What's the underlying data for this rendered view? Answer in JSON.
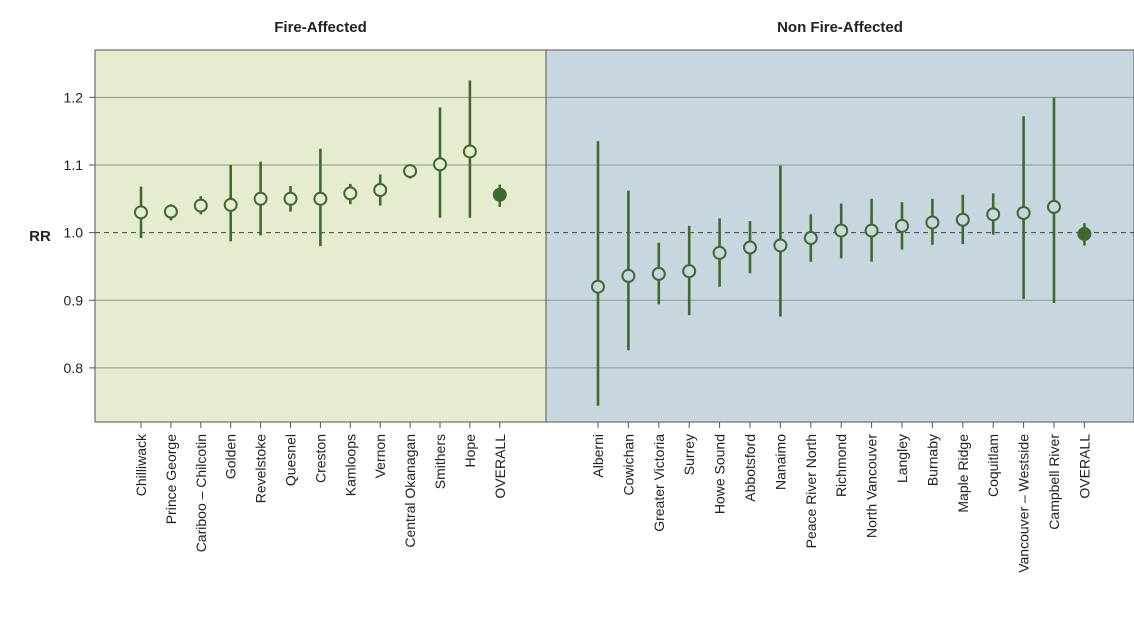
{
  "chart_data": {
    "type": "scatter",
    "ylabel": "RR",
    "ylim": [
      0.72,
      1.27
    ],
    "yticks": [
      "0.8",
      "0.9",
      "1.0",
      "1.1",
      "1.2"
    ],
    "reference_line": 1.0,
    "grid": true,
    "colors": {
      "fire_bg": "#e6ecd0",
      "nonfire_bg": "#c8d6df",
      "marker": "#3d6b2e",
      "gridline": "#8a9a8a"
    },
    "panels": [
      {
        "title": "Fire-Affected",
        "points": [
          {
            "label": "Chilliwack",
            "rr": 1.03,
            "lo": 0.992,
            "hi": 1.068,
            "overall": false
          },
          {
            "label": "Prince George",
            "rr": 1.031,
            "lo": 1.018,
            "hi": 1.042,
            "overall": false
          },
          {
            "label": "Cariboo – Chilcotin",
            "rr": 1.04,
            "lo": 1.027,
            "hi": 1.054,
            "overall": false
          },
          {
            "label": "Golden",
            "rr": 1.041,
            "lo": 0.987,
            "hi": 1.1,
            "overall": false
          },
          {
            "label": "Revelstoke",
            "rr": 1.05,
            "lo": 0.996,
            "hi": 1.105,
            "overall": false
          },
          {
            "label": "Quesnel",
            "rr": 1.05,
            "lo": 1.031,
            "hi": 1.069,
            "overall": false
          },
          {
            "label": "Creston",
            "rr": 1.05,
            "lo": 0.98,
            "hi": 1.124,
            "overall": false
          },
          {
            "label": "Kamloops",
            "rr": 1.058,
            "lo": 1.042,
            "hi": 1.072,
            "overall": false
          },
          {
            "label": "Vernon",
            "rr": 1.063,
            "lo": 1.04,
            "hi": 1.086,
            "overall": false
          },
          {
            "label": "Central Okanagan",
            "rr": 1.091,
            "lo": 1.08,
            "hi": 1.101,
            "overall": false
          },
          {
            "label": "Smithers",
            "rr": 1.101,
            "lo": 1.022,
            "hi": 1.185,
            "overall": false
          },
          {
            "label": "Hope",
            "rr": 1.12,
            "lo": 1.022,
            "hi": 1.225,
            "overall": false
          },
          {
            "label": "OVERALL",
            "rr": 1.056,
            "lo": 1.038,
            "hi": 1.071,
            "overall": true
          }
        ]
      },
      {
        "title": "Non Fire-Affected",
        "points": [
          {
            "label": "Alberni",
            "rr": 0.92,
            "lo": 0.744,
            "hi": 1.135,
            "overall": false
          },
          {
            "label": "Cowichan",
            "rr": 0.936,
            "lo": 0.826,
            "hi": 1.062,
            "overall": false
          },
          {
            "label": "Greater Victoria",
            "rr": 0.939,
            "lo": 0.894,
            "hi": 0.985,
            "overall": false
          },
          {
            "label": "Surrey",
            "rr": 0.943,
            "lo": 0.878,
            "hi": 1.01,
            "overall": false
          },
          {
            "label": "Howe Sound",
            "rr": 0.97,
            "lo": 0.92,
            "hi": 1.021,
            "overall": false
          },
          {
            "label": "Abbotsford",
            "rr": 0.978,
            "lo": 0.94,
            "hi": 1.017,
            "overall": false
          },
          {
            "label": "Nanaimo",
            "rr": 0.981,
            "lo": 0.876,
            "hi": 1.099,
            "overall": false
          },
          {
            "label": "Peace River North",
            "rr": 0.992,
            "lo": 0.957,
            "hi": 1.027,
            "overall": false
          },
          {
            "label": "Richmond",
            "rr": 1.003,
            "lo": 0.962,
            "hi": 1.043,
            "overall": false
          },
          {
            "label": "North Vancouver",
            "rr": 1.003,
            "lo": 0.957,
            "hi": 1.05,
            "overall": false
          },
          {
            "label": "Langley",
            "rr": 1.01,
            "lo": 0.975,
            "hi": 1.045,
            "overall": false
          },
          {
            "label": "Burnaby",
            "rr": 1.015,
            "lo": 0.982,
            "hi": 1.05,
            "overall": false
          },
          {
            "label": "Maple Ridge",
            "rr": 1.019,
            "lo": 0.983,
            "hi": 1.056,
            "overall": false
          },
          {
            "label": "Coquitlam",
            "rr": 1.027,
            "lo": 0.997,
            "hi": 1.058,
            "overall": false
          },
          {
            "label": "Vancouver – Westside",
            "rr": 1.029,
            "lo": 0.902,
            "hi": 1.172,
            "overall": false
          },
          {
            "label": "Campbell River",
            "rr": 1.038,
            "lo": 0.896,
            "hi": 1.2,
            "overall": false
          },
          {
            "label": "OVERALL",
            "rr": 0.998,
            "lo": 0.981,
            "hi": 1.014,
            "overall": true
          }
        ]
      }
    ]
  }
}
